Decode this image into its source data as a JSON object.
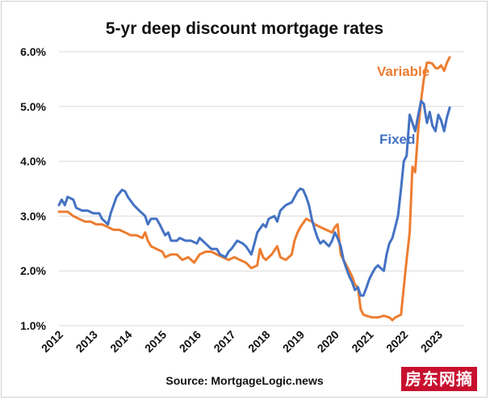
{
  "chart_data": {
    "type": "line",
    "title": "5-yr deep discount mortgage rates",
    "source": "Source: MortgageLogic.news",
    "xlabel": "",
    "ylabel": "",
    "xlim": [
      2012.0,
      2023.75
    ],
    "ylim": [
      1.0,
      6.0
    ],
    "y_ticks": [
      1.0,
      2.0,
      3.0,
      4.0,
      5.0,
      6.0
    ],
    "y_tick_labels": [
      "1.0%",
      "2.0%",
      "3.0%",
      "4.0%",
      "5.0%",
      "6.0%"
    ],
    "x_ticks": [
      2012,
      2013,
      2014,
      2015,
      2016,
      2017,
      2018,
      2019,
      2020,
      2021,
      2022,
      2023
    ],
    "x_tick_labels": [
      "2012",
      "2013",
      "2014",
      "2015",
      "2016",
      "2017",
      "2018",
      "2019",
      "2020",
      "2021",
      "2022",
      "2023"
    ],
    "grid": "horizontal",
    "series": [
      {
        "name": "Fixed",
        "color": "#4472c4",
        "points": [
          [
            2012.0,
            3.2
          ],
          [
            2012.08,
            3.3
          ],
          [
            2012.17,
            3.2
          ],
          [
            2012.25,
            3.35
          ],
          [
            2012.42,
            3.3
          ],
          [
            2012.5,
            3.15
          ],
          [
            2012.67,
            3.1
          ],
          [
            2012.83,
            3.1
          ],
          [
            2013.0,
            3.05
          ],
          [
            2013.17,
            3.05
          ],
          [
            2013.25,
            2.95
          ],
          [
            2013.42,
            2.85
          ],
          [
            2013.5,
            3.05
          ],
          [
            2013.67,
            3.35
          ],
          [
            2013.83,
            3.48
          ],
          [
            2013.92,
            3.45
          ],
          [
            2014.0,
            3.35
          ],
          [
            2014.17,
            3.2
          ],
          [
            2014.33,
            3.1
          ],
          [
            2014.5,
            3.0
          ],
          [
            2014.58,
            2.85
          ],
          [
            2014.67,
            2.95
          ],
          [
            2014.83,
            2.95
          ],
          [
            2014.92,
            2.85
          ],
          [
            2015.0,
            2.75
          ],
          [
            2015.08,
            2.65
          ],
          [
            2015.17,
            2.7
          ],
          [
            2015.25,
            2.55
          ],
          [
            2015.42,
            2.55
          ],
          [
            2015.5,
            2.6
          ],
          [
            2015.67,
            2.55
          ],
          [
            2015.83,
            2.55
          ],
          [
            2016.0,
            2.5
          ],
          [
            2016.08,
            2.6
          ],
          [
            2016.25,
            2.5
          ],
          [
            2016.42,
            2.4
          ],
          [
            2016.58,
            2.4
          ],
          [
            2016.67,
            2.3
          ],
          [
            2016.83,
            2.25
          ],
          [
            2016.92,
            2.35
          ],
          [
            2017.0,
            2.4
          ],
          [
            2017.17,
            2.55
          ],
          [
            2017.33,
            2.5
          ],
          [
            2017.42,
            2.45
          ],
          [
            2017.58,
            2.3
          ],
          [
            2017.67,
            2.5
          ],
          [
            2017.75,
            2.7
          ],
          [
            2017.92,
            2.85
          ],
          [
            2018.0,
            2.8
          ],
          [
            2018.08,
            2.95
          ],
          [
            2018.25,
            3.0
          ],
          [
            2018.33,
            2.9
          ],
          [
            2018.42,
            3.1
          ],
          [
            2018.58,
            3.2
          ],
          [
            2018.75,
            3.25
          ],
          [
            2018.92,
            3.45
          ],
          [
            2019.0,
            3.5
          ],
          [
            2019.08,
            3.48
          ],
          [
            2019.17,
            3.35
          ],
          [
            2019.25,
            3.2
          ],
          [
            2019.33,
            2.95
          ],
          [
            2019.42,
            2.75
          ],
          [
            2019.5,
            2.6
          ],
          [
            2019.58,
            2.5
          ],
          [
            2019.67,
            2.55
          ],
          [
            2019.75,
            2.5
          ],
          [
            2019.83,
            2.45
          ],
          [
            2019.92,
            2.55
          ],
          [
            2020.0,
            2.7
          ],
          [
            2020.08,
            2.6
          ],
          [
            2020.17,
            2.45
          ],
          [
            2020.25,
            2.2
          ],
          [
            2020.33,
            2.05
          ],
          [
            2020.42,
            1.9
          ],
          [
            2020.5,
            1.8
          ],
          [
            2020.58,
            1.65
          ],
          [
            2020.67,
            1.7
          ],
          [
            2020.75,
            1.55
          ],
          [
            2020.83,
            1.55
          ],
          [
            2020.92,
            1.7
          ],
          [
            2021.0,
            1.85
          ],
          [
            2021.08,
            1.95
          ],
          [
            2021.17,
            2.05
          ],
          [
            2021.25,
            2.1
          ],
          [
            2021.33,
            2.05
          ],
          [
            2021.42,
            2.0
          ],
          [
            2021.5,
            2.3
          ],
          [
            2021.58,
            2.5
          ],
          [
            2021.67,
            2.6
          ],
          [
            2021.75,
            2.8
          ],
          [
            2021.83,
            3.0
          ],
          [
            2021.92,
            3.5
          ],
          [
            2022.0,
            4.0
          ],
          [
            2022.08,
            4.1
          ],
          [
            2022.17,
            4.85
          ],
          [
            2022.25,
            4.7
          ],
          [
            2022.33,
            4.55
          ],
          [
            2022.42,
            4.85
          ],
          [
            2022.5,
            5.1
          ],
          [
            2022.58,
            5.05
          ],
          [
            2022.67,
            4.7
          ],
          [
            2022.75,
            4.9
          ],
          [
            2022.83,
            4.65
          ],
          [
            2022.92,
            4.55
          ],
          [
            2023.0,
            4.85
          ],
          [
            2023.08,
            4.75
          ],
          [
            2023.17,
            4.55
          ],
          [
            2023.25,
            4.8
          ],
          [
            2023.33,
            4.98
          ]
        ]
      },
      {
        "name": "Variable",
        "color": "#ed7d31",
        "points": [
          [
            2012.0,
            3.08
          ],
          [
            2012.25,
            3.08
          ],
          [
            2012.42,
            3.0
          ],
          [
            2012.58,
            2.95
          ],
          [
            2012.75,
            2.9
          ],
          [
            2012.92,
            2.9
          ],
          [
            2013.08,
            2.85
          ],
          [
            2013.25,
            2.85
          ],
          [
            2013.42,
            2.8
          ],
          [
            2013.58,
            2.75
          ],
          [
            2013.75,
            2.75
          ],
          [
            2013.92,
            2.7
          ],
          [
            2014.08,
            2.65
          ],
          [
            2014.25,
            2.65
          ],
          [
            2014.42,
            2.6
          ],
          [
            2014.5,
            2.7
          ],
          [
            2014.58,
            2.55
          ],
          [
            2014.67,
            2.45
          ],
          [
            2014.83,
            2.4
          ],
          [
            2015.0,
            2.35
          ],
          [
            2015.08,
            2.25
          ],
          [
            2015.25,
            2.3
          ],
          [
            2015.42,
            2.3
          ],
          [
            2015.58,
            2.2
          ],
          [
            2015.75,
            2.25
          ],
          [
            2015.92,
            2.15
          ],
          [
            2016.08,
            2.3
          ],
          [
            2016.25,
            2.35
          ],
          [
            2016.42,
            2.35
          ],
          [
            2016.58,
            2.3
          ],
          [
            2016.75,
            2.25
          ],
          [
            2016.92,
            2.2
          ],
          [
            2017.08,
            2.25
          ],
          [
            2017.25,
            2.2
          ],
          [
            2017.42,
            2.15
          ],
          [
            2017.58,
            2.05
          ],
          [
            2017.75,
            2.1
          ],
          [
            2017.83,
            2.4
          ],
          [
            2017.92,
            2.25
          ],
          [
            2018.0,
            2.2
          ],
          [
            2018.17,
            2.3
          ],
          [
            2018.33,
            2.45
          ],
          [
            2018.42,
            2.25
          ],
          [
            2018.58,
            2.2
          ],
          [
            2018.75,
            2.3
          ],
          [
            2018.83,
            2.55
          ],
          [
            2018.92,
            2.7
          ],
          [
            2019.0,
            2.8
          ],
          [
            2019.17,
            2.95
          ],
          [
            2019.33,
            2.9
          ],
          [
            2019.42,
            2.85
          ],
          [
            2019.58,
            2.8
          ],
          [
            2019.75,
            2.75
          ],
          [
            2019.92,
            2.7
          ],
          [
            2020.0,
            2.8
          ],
          [
            2020.08,
            2.85
          ],
          [
            2020.17,
            2.3
          ],
          [
            2020.25,
            2.2
          ],
          [
            2020.42,
            2.0
          ],
          [
            2020.5,
            1.9
          ],
          [
            2020.58,
            1.75
          ],
          [
            2020.67,
            1.7
          ],
          [
            2020.75,
            1.3
          ],
          [
            2020.83,
            1.2
          ],
          [
            2020.92,
            1.18
          ],
          [
            2021.08,
            1.15
          ],
          [
            2021.25,
            1.15
          ],
          [
            2021.42,
            1.18
          ],
          [
            2021.58,
            1.15
          ],
          [
            2021.67,
            1.1
          ],
          [
            2021.75,
            1.15
          ],
          [
            2021.92,
            1.2
          ],
          [
            2022.0,
            1.7
          ],
          [
            2022.08,
            2.2
          ],
          [
            2022.17,
            2.7
          ],
          [
            2022.25,
            3.9
          ],
          [
            2022.33,
            3.8
          ],
          [
            2022.42,
            4.6
          ],
          [
            2022.5,
            5.1
          ],
          [
            2022.58,
            5.5
          ],
          [
            2022.67,
            5.8
          ],
          [
            2022.75,
            5.8
          ],
          [
            2022.83,
            5.78
          ],
          [
            2022.92,
            5.7
          ],
          [
            2023.0,
            5.7
          ],
          [
            2023.08,
            5.75
          ],
          [
            2023.17,
            5.65
          ],
          [
            2023.25,
            5.8
          ],
          [
            2023.33,
            5.9
          ]
        ]
      }
    ]
  },
  "watermark": {
    "text": "房东网摘",
    "background": "#c8102e"
  }
}
